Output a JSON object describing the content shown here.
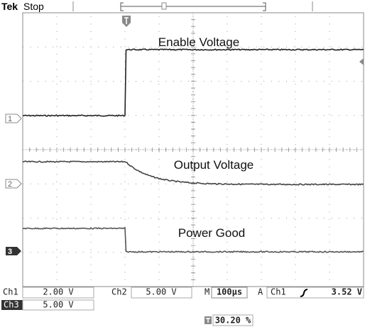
{
  "header": {
    "brand": "Tek",
    "status": "Stop"
  },
  "traces": [
    {
      "label": "Enable Voltage"
    },
    {
      "label": "Output Voltage"
    },
    {
      "label": "Power Good"
    }
  ],
  "channel_markers": [
    "1",
    "2",
    "3"
  ],
  "readout": {
    "ch1": {
      "name": "Ch1",
      "scale": "2.00 V"
    },
    "ch2": {
      "name": "Ch2",
      "scale": "5.00 V"
    },
    "ch3": {
      "name": "Ch3",
      "scale": "5.00 V"
    },
    "timebase": {
      "name": "M",
      "scale": "100µs"
    },
    "trigger": {
      "mode": "A",
      "source": "Ch1",
      "level": "3.52 V"
    },
    "trigger_position": "30.20 %"
  }
}
